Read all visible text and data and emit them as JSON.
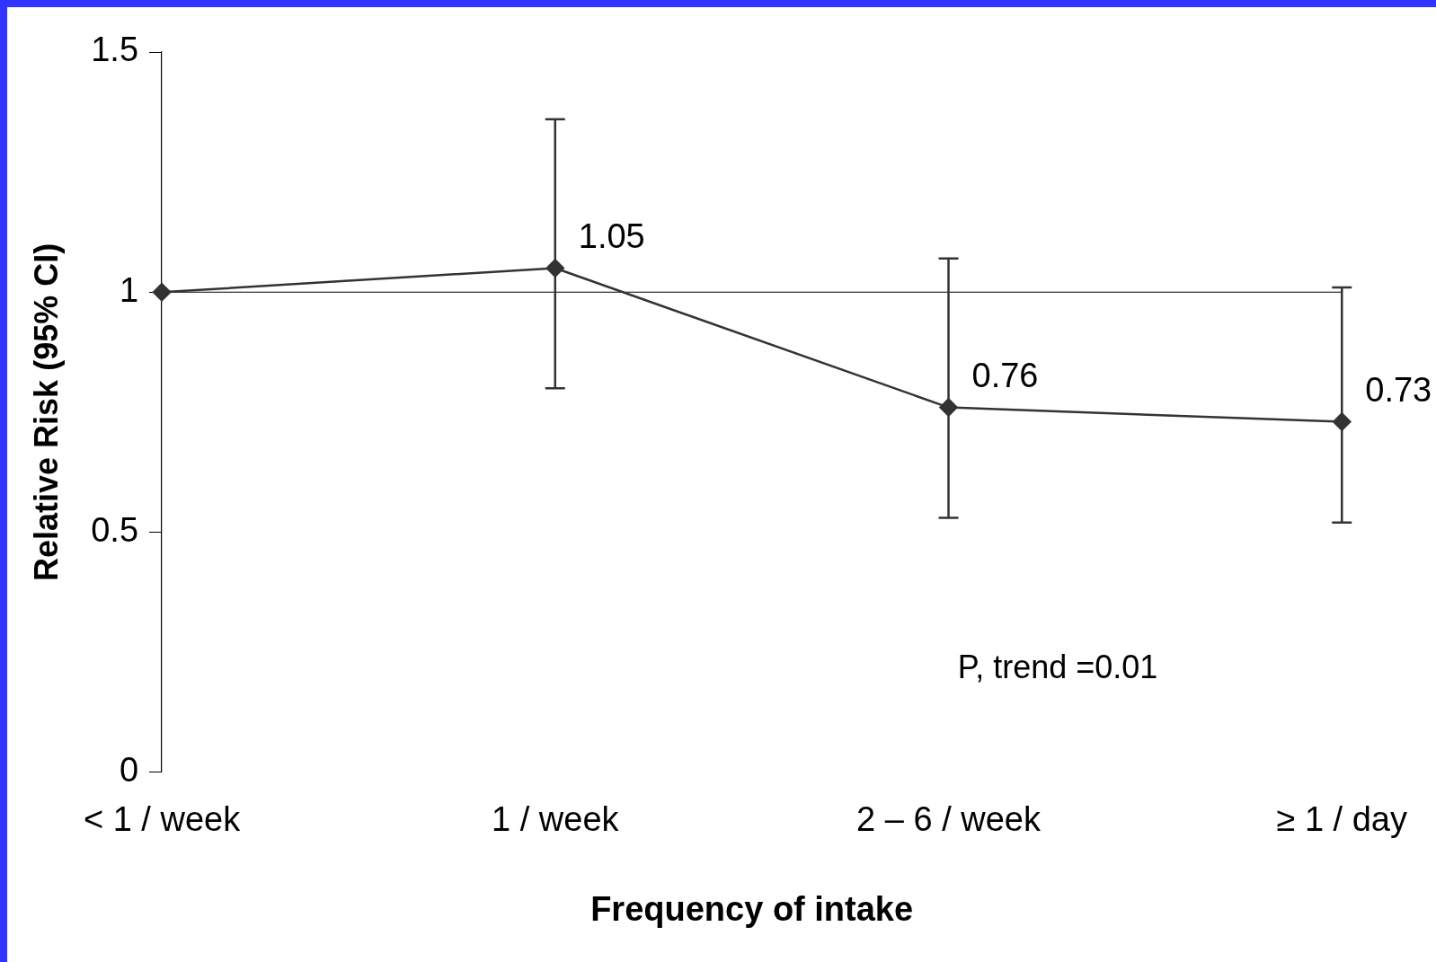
{
  "chart_data": {
    "type": "line",
    "xlabel": "Frequency of intake",
    "ylabel": "Relative Risk (95% CI)",
    "categories": [
      "< 1 / week",
      "1 / week",
      "2 – 6 / week",
      "≥ 1 / day"
    ],
    "series": [
      {
        "color": "#333333",
        "values": [
          1,
          1.05,
          0.76,
          0.73
        ],
        "errors": [
          null,
          [
            0.8,
            1.36
          ],
          [
            0.53,
            1.07
          ],
          [
            0.52,
            1.01
          ]
        ],
        "value_labels": [
          null,
          "1.05",
          "0.76",
          "0.73"
        ]
      }
    ],
    "ylim": [
      0,
      1.5
    ],
    "yticks": [
      0,
      0.5,
      1,
      1.5
    ],
    "ref_lines": [
      {
        "axis": "y",
        "value": 1,
        "color": "#000000"
      }
    ],
    "annotations": [
      "P, trend =0.01"
    ],
    "marker": "diamond",
    "line_style": "solid",
    "grid": false,
    "legend": false
  }
}
